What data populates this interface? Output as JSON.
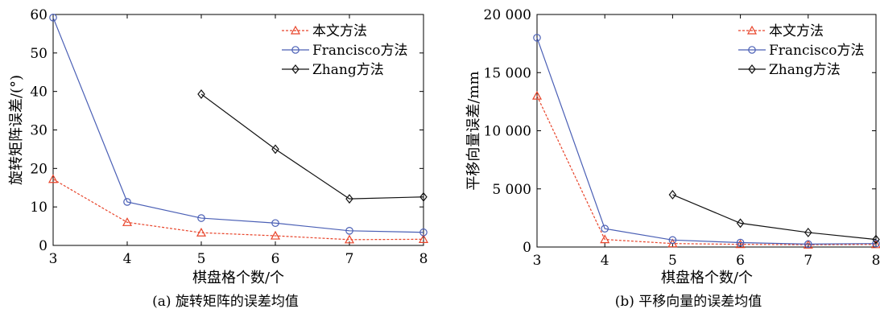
{
  "chart_data": [
    {
      "type": "line",
      "x": [
        3,
        4,
        5,
        6,
        7,
        8
      ],
      "xlim": [
        3,
        8
      ],
      "ylim": [
        0,
        60
      ],
      "xticks": [
        "3",
        "4",
        "5",
        "6",
        "7",
        "8"
      ],
      "yticks": [
        "0",
        "10",
        "20",
        "30",
        "40",
        "50",
        "60"
      ],
      "xlabel": "棋盘格个数/个",
      "ylabel": "旋转矩阵误差/(°)",
      "caption": "(a) 旋转矩阵的误差均值",
      "grid": false,
      "legend_position": "top-right",
      "series": [
        {
          "name": "本文方法",
          "x": [
            3,
            4,
            5,
            6,
            7,
            8
          ],
          "values": [
            17.2,
            6.0,
            3.3,
            2.5,
            1.5,
            1.6
          ],
          "color": "#e8442a",
          "marker": "triangle",
          "dash": true
        },
        {
          "name": "Francisco方法",
          "x": [
            3,
            4,
            5,
            6,
            7,
            8
          ],
          "values": [
            59.2,
            11.3,
            7.1,
            5.8,
            3.8,
            3.4
          ],
          "color": "#4a5fb5",
          "marker": "circle",
          "dash": false
        },
        {
          "name": "Zhang方法",
          "x": [
            5,
            6,
            7,
            8
          ],
          "values": [
            39.3,
            25.0,
            12.1,
            12.6
          ],
          "color": "#111111",
          "marker": "diamond",
          "dash": false
        }
      ]
    },
    {
      "type": "line",
      "x": [
        3,
        4,
        5,
        6,
        7,
        8
      ],
      "xlim": [
        3,
        8
      ],
      "ylim": [
        0,
        20000
      ],
      "xticks": [
        "3",
        "4",
        "5",
        "6",
        "7",
        "8"
      ],
      "yticks": [
        "0",
        "5 000",
        "10 000",
        "15 000",
        "20 000"
      ],
      "xlabel": "棋盘格个数/个",
      "ylabel": "平移向量误差/mm",
      "caption": "(b) 平移向量的误差均值",
      "grid": false,
      "legend_position": "top-right",
      "series": [
        {
          "name": "本文方法",
          "x": [
            3,
            4,
            5,
            6,
            7,
            8
          ],
          "values": [
            13000,
            650,
            300,
            230,
            190,
            220
          ],
          "color": "#e8442a",
          "marker": "triangle",
          "dash": true
        },
        {
          "name": "Francisco方法",
          "x": [
            3,
            4,
            5,
            6,
            7,
            8
          ],
          "values": [
            18000,
            1580,
            600,
            380,
            250,
            300
          ],
          "color": "#4a5fb5",
          "marker": "circle",
          "dash": false
        },
        {
          "name": "Zhang方法",
          "x": [
            5,
            6,
            7,
            8
          ],
          "values": [
            4500,
            2050,
            1250,
            650
          ],
          "color": "#111111",
          "marker": "diamond",
          "dash": false
        }
      ]
    }
  ]
}
